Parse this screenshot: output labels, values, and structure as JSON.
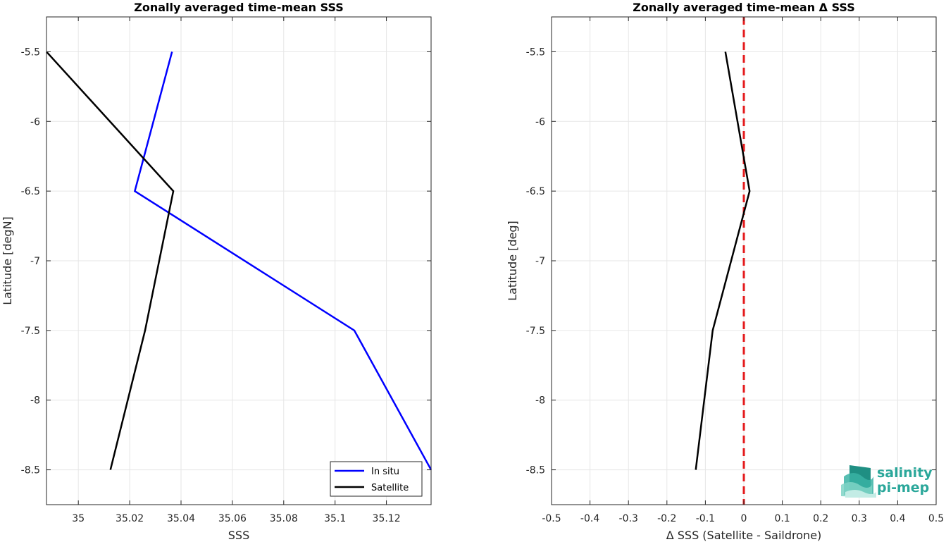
{
  "chart_data": [
    {
      "type": "line",
      "title": "Zonally averaged time-mean SSS",
      "xlabel": "SSS",
      "ylabel": "Latitude [degN]",
      "xlim": [
        34.9876,
        35.1374
      ],
      "ylim": [
        -8.75,
        -5.25
      ],
      "xticks": [
        35,
        35.02,
        35.04,
        35.06,
        35.08,
        35.1,
        35.12
      ],
      "xtick_labels": [
        "35",
        "35.02",
        "35.04",
        "35.06",
        "35.08",
        "35.1",
        "35.12"
      ],
      "yticks": [
        -5.5,
        -6,
        -6.5,
        -7,
        -7.5,
        -8,
        -8.5
      ],
      "ytick_labels": [
        "-5.5",
        "-6",
        "-6.5",
        "-7",
        "-7.5",
        "-8",
        "-8.5"
      ],
      "grid": true,
      "legend": "bottom-right",
      "series": [
        {
          "name": "In situ",
          "color": "#0000ff",
          "x": [
            35.0365,
            35.022,
            35.1075,
            35.1374
          ],
          "y": [
            -5.5,
            -6.5,
            -7.5,
            -8.5
          ]
        },
        {
          "name": "Satellite",
          "color": "#000000",
          "x": [
            34.9876,
            35.037,
            35.026,
            35.0125
          ],
          "y": [
            -5.5,
            -6.5,
            -7.5,
            -8.5
          ]
        }
      ]
    },
    {
      "type": "line",
      "title": "Zonally averaged time-mean Δ SSS",
      "xlabel": "Δ SSS (Satellite - Saildrone)",
      "ylabel": "Latitude [deg]",
      "xlim": [
        -0.5,
        0.5
      ],
      "ylim": [
        -8.75,
        -5.25
      ],
      "xticks": [
        -0.5,
        -0.4,
        -0.3,
        -0.2,
        -0.1,
        0,
        0.1,
        0.2,
        0.3,
        0.4,
        0.5
      ],
      "xtick_labels": [
        "-0.5",
        "-0.4",
        "-0.3",
        "-0.2",
        "-0.1",
        "0",
        "0.1",
        "0.2",
        "0.3",
        "0.4",
        "0.5"
      ],
      "yticks": [
        -5.5,
        -6,
        -6.5,
        -7,
        -7.5,
        -8,
        -8.5
      ],
      "ytick_labels": [
        "-5.5",
        "-6",
        "-6.5",
        "-7",
        "-7.5",
        "-8",
        "-8.5"
      ],
      "grid": true,
      "reference_line": {
        "x": 0,
        "color": "#e41a1c",
        "style": "dashed"
      },
      "series": [
        {
          "color": "#000000",
          "x": [
            -0.048,
            0.015,
            -0.081,
            -0.125
          ],
          "y": [
            -5.5,
            -6.5,
            -7.5,
            -8.5
          ]
        }
      ]
    }
  ],
  "logo": {
    "line1": "salinity",
    "line2": "pi-mep",
    "color": "#2aa79a"
  }
}
